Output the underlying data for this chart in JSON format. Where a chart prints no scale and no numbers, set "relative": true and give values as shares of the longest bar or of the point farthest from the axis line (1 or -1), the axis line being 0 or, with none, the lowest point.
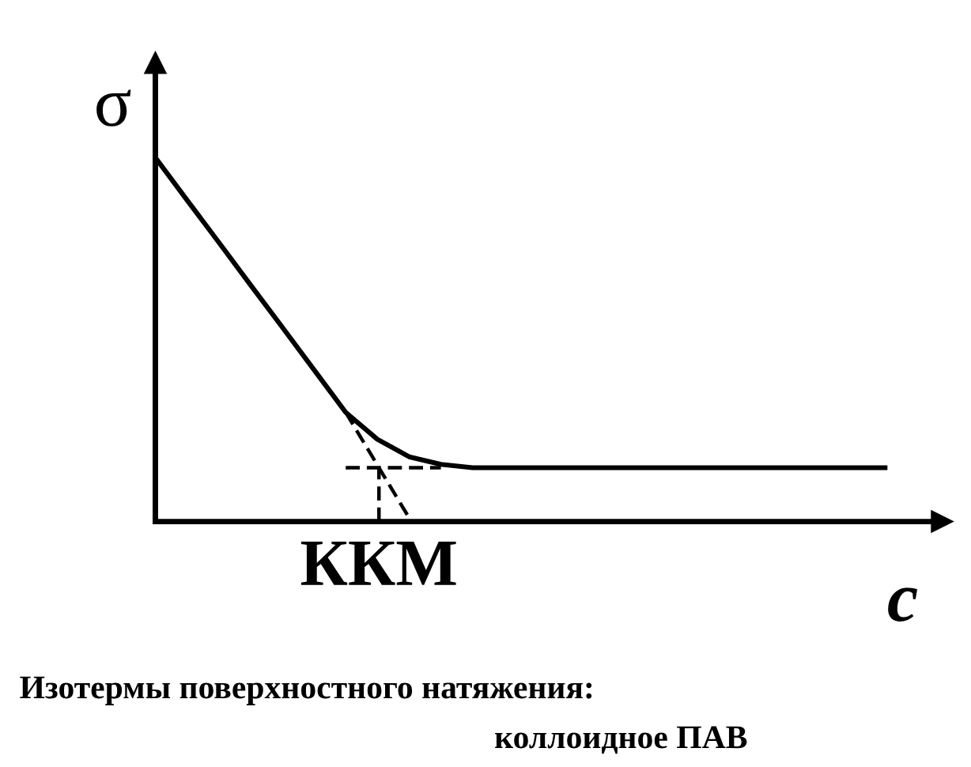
{
  "chart_data": {
    "type": "line",
    "relative": true,
    "xlabel": "c",
    "ylabel": "σ",
    "marker": "none",
    "categories": [
      null,
      null,
      null,
      null,
      null,
      null,
      null,
      null,
      null,
      null,
      null,
      null,
      null,
      null,
      null,
      null,
      null,
      null,
      null,
      null,
      null,
      null,
      null,
      null
    ],
    "series": [
      {
        "color": "#000000",
        "line_style": "solid",
        "values": [
          1.0,
          0.883,
          0.767,
          0.65,
          0.534,
          0.417,
          0.3,
          0.226,
          0.178,
          0.157,
          0.148,
          0.148,
          0.148,
          0.148,
          0.148,
          0.148,
          0.148,
          0.148,
          0.148,
          0.148,
          0.148,
          0.148,
          0.148,
          0.148
        ]
      },
      {
        "color": "#000000",
        "line_style": "dashed",
        "values": [
          null,
          null,
          null,
          null,
          null,
          null,
          0.3,
          0.155,
          0.01,
          null,
          null,
          null,
          null,
          null,
          null,
          null,
          null,
          null,
          null,
          null,
          null,
          null,
          null,
          null
        ]
      },
      {
        "color": "#000000",
        "line_style": "dashed",
        "values": [
          null,
          null,
          null,
          null,
          null,
          null,
          0.148,
          0.148,
          0.148,
          0.148,
          null,
          null,
          null,
          null,
          null,
          null,
          null,
          null,
          null,
          null,
          null,
          null,
          null,
          null
        ]
      }
    ],
    "annotations": [
      "ККМ",
      "Изотермы поверхностного натяжения:",
      "коллоидное ПАВ"
    ]
  }
}
